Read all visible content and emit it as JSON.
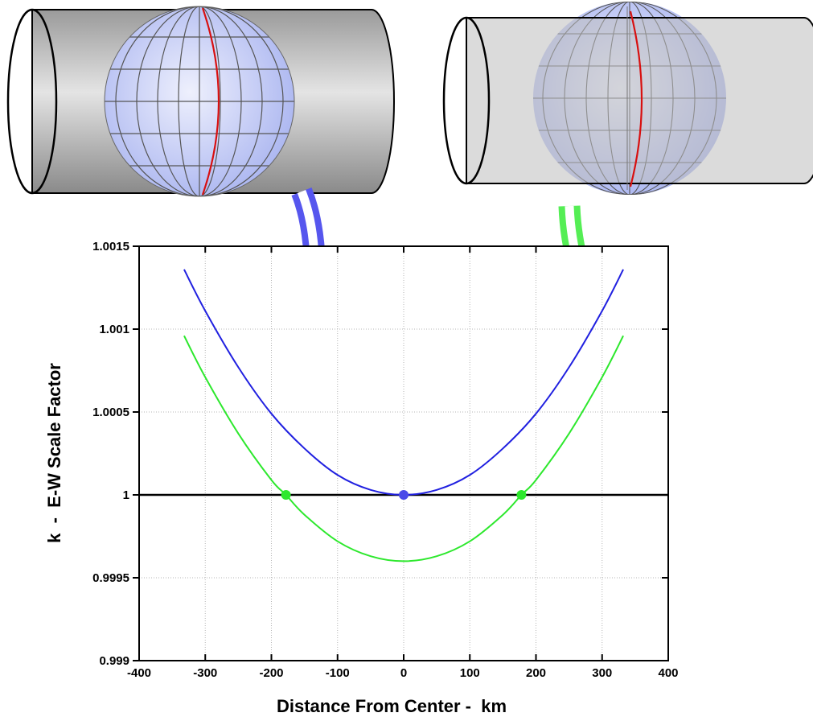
{
  "colors": {
    "tangent_curve": "#2020e0",
    "secant_curve": "#2de82d",
    "tangent_arrow": "#6a6af0",
    "secant_arrow": "#5af05a",
    "standard_line": "#c8102e",
    "globe": "#c6cff6",
    "cylinder": "#d4d4d4"
  },
  "illustrations": {
    "left_name": "tangent cylinder",
    "right_name": "secant cylinder"
  },
  "chart_data": {
    "type": "line",
    "xlabel": "Distance From Center -  km",
    "ylabel": "k  -  E-W Scale Factor",
    "xlim": [
      -400,
      400
    ],
    "ylim": [
      0.999,
      1.0015
    ],
    "x_ticks": [
      "-400",
      "-300",
      "-200",
      "-100",
      "0",
      "100",
      "200",
      "300",
      "400"
    ],
    "y_ticks": [
      "0.999",
      "0.9995",
      "1",
      "1.0005",
      "1.001",
      "1.0015"
    ],
    "grid": true,
    "reference_line_y": 1,
    "series": [
      {
        "color": "#2020e0",
        "points": [
          [
            -332,
            1.00136
          ],
          [
            -300,
            1.00111
          ],
          [
            -250,
            1.00077
          ],
          [
            -200,
            1.00049
          ],
          [
            -150,
            1.00028
          ],
          [
            -100,
            1.00012
          ],
          [
            -50,
            1.00003
          ],
          [
            0,
            1.0
          ],
          [
            50,
            1.00003
          ],
          [
            100,
            1.00012
          ],
          [
            150,
            1.00028
          ],
          [
            200,
            1.00049
          ],
          [
            250,
            1.00077
          ],
          [
            300,
            1.00111
          ],
          [
            332,
            1.00136
          ]
        ]
      },
      {
        "color": "#2de82d",
        "points": [
          [
            -332,
            1.00096
          ],
          [
            -300,
            1.00071
          ],
          [
            -250,
            1.00037
          ],
          [
            -200,
            1.00009
          ],
          [
            -178,
            1.0
          ],
          [
            -150,
            0.99988
          ],
          [
            -100,
            0.99972
          ],
          [
            -50,
            0.99963
          ],
          [
            0,
            0.9996
          ],
          [
            50,
            0.99963
          ],
          [
            100,
            0.99972
          ],
          [
            150,
            0.99988
          ],
          [
            178,
            1.0
          ],
          [
            200,
            1.00009
          ],
          [
            250,
            1.00037
          ],
          [
            300,
            1.00071
          ],
          [
            332,
            1.00096
          ]
        ]
      }
    ],
    "markers": [
      {
        "x": 0,
        "y": 1.0,
        "color": "#4a4ae8"
      },
      {
        "x": -178,
        "y": 1.0,
        "color": "#2de82d"
      },
      {
        "x": 178,
        "y": 1.0,
        "color": "#2de82d"
      }
    ]
  }
}
